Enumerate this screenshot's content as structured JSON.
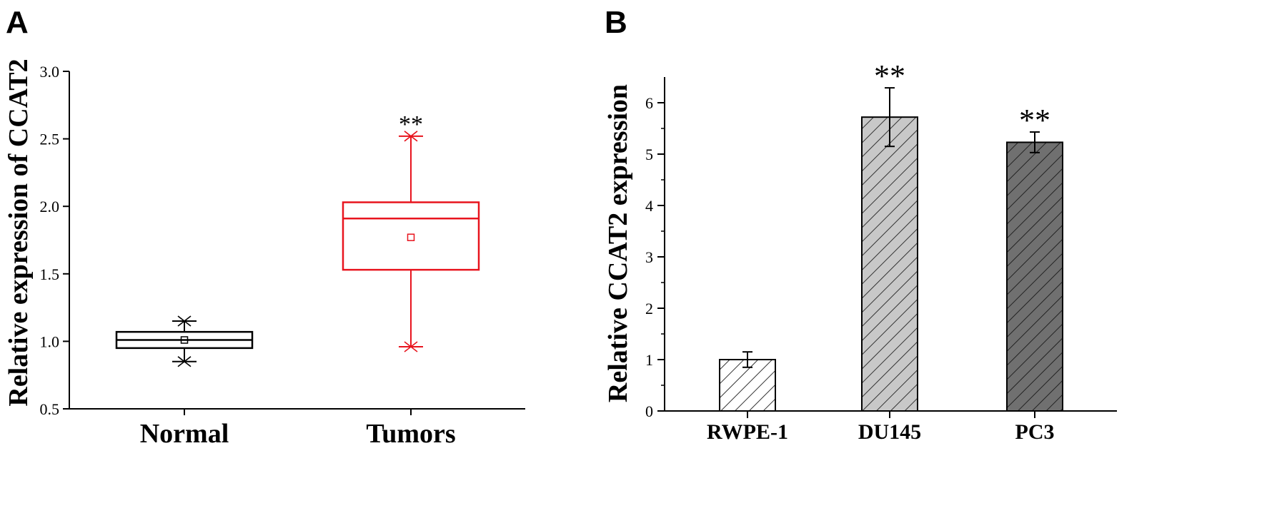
{
  "chart_data": [
    {
      "panel": "A",
      "type": "box",
      "ylabel": "Relative expression of CCAT2",
      "ylim": [
        0.5,
        3.0
      ],
      "yticks": [
        0.5,
        1.0,
        1.5,
        2.0,
        2.5,
        3.0
      ],
      "ytick_labels": [
        "0.5",
        "1.0",
        "1.5",
        "2.0",
        "2.5",
        "3.0"
      ],
      "grid": false,
      "categories": [
        "Normal",
        "Tumors"
      ],
      "boxes": [
        {
          "label": "Normal",
          "min": 0.85,
          "q1": 0.95,
          "median": 1.01,
          "q3": 1.07,
          "max": 1.15,
          "mean": 1.01,
          "color": "#000000",
          "significance": ""
        },
        {
          "label": "Tumors",
          "min": 0.96,
          "q1": 1.53,
          "median": 1.91,
          "q3": 2.03,
          "max": 2.52,
          "mean": 1.77,
          "color": "#e8141e",
          "significance": "**"
        }
      ]
    },
    {
      "panel": "B",
      "type": "bar",
      "ylabel": "Relative  CCAT2  expression",
      "ylim": [
        0,
        6.5
      ],
      "yticks": [
        0,
        1,
        2,
        3,
        4,
        5,
        6
      ],
      "ytick_labels": [
        "0",
        "1",
        "2",
        "3",
        "4",
        "5",
        "6"
      ],
      "grid": false,
      "categories": [
        "RWPE-1",
        "DU145",
        "PC3"
      ],
      "values": [
        1.0,
        5.72,
        5.23
      ],
      "errors": [
        0.15,
        0.57,
        0.2
      ],
      "significance": [
        "",
        "**",
        "**"
      ],
      "fills": [
        "#ffffff",
        "#c8c8c8",
        "#707070"
      ]
    }
  ]
}
